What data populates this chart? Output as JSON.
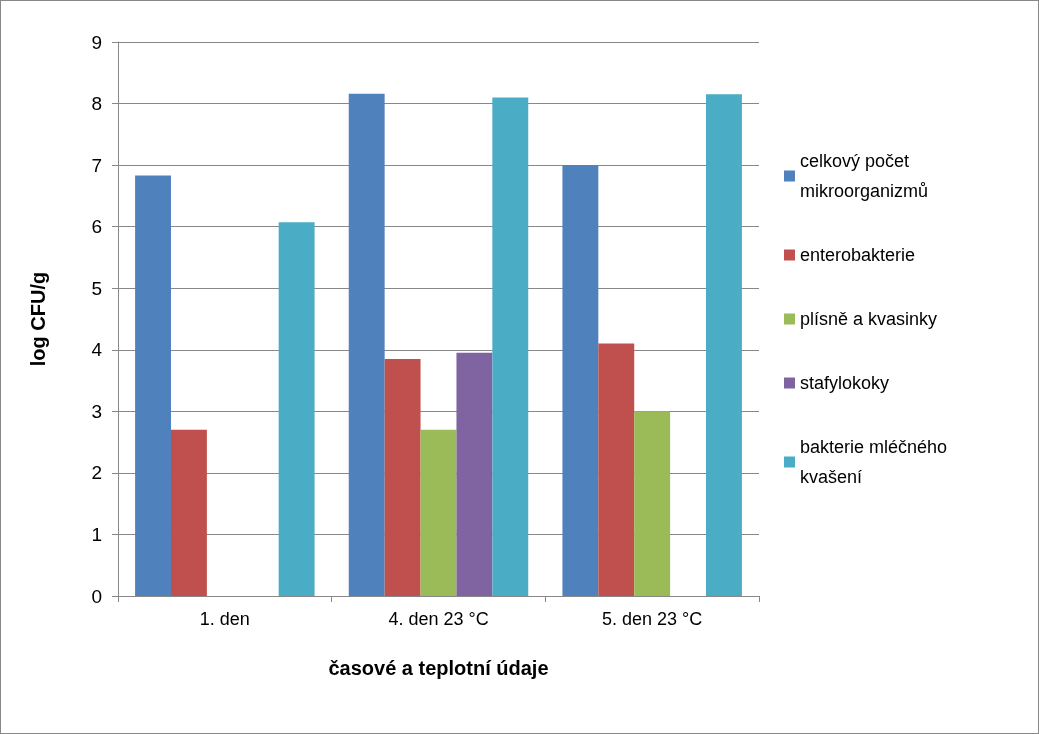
{
  "chart_data": {
    "type": "bar",
    "xlabel": "časové a teplotní údaje",
    "ylabel": "log CFU/g",
    "categories": [
      "1. den",
      "4. den 23 °C",
      "5. den 23 °C"
    ],
    "series": [
      {
        "name": "celkový počet mikroorganizmů",
        "color": "#4f81bd",
        "values": [
          6.83,
          8.16,
          7.0
        ]
      },
      {
        "name": "enterobakterie",
        "color": "#c0504d",
        "values": [
          2.7,
          3.85,
          4.1
        ]
      },
      {
        "name": "plísně a kvasinky",
        "color": "#9bbb59",
        "values": [
          null,
          2.7,
          3.0
        ]
      },
      {
        "name": "stafylokoky",
        "color": "#8064a2",
        "values": [
          null,
          3.95,
          null
        ]
      },
      {
        "name": "bakterie mléčného kvašení",
        "color": "#4bacc6",
        "values": [
          6.07,
          8.1,
          8.15
        ]
      }
    ],
    "ylim": [
      0,
      9
    ],
    "yticks": [
      0,
      1,
      2,
      3,
      4,
      5,
      6,
      7,
      8,
      9
    ],
    "grid": "y",
    "legend": "right"
  }
}
